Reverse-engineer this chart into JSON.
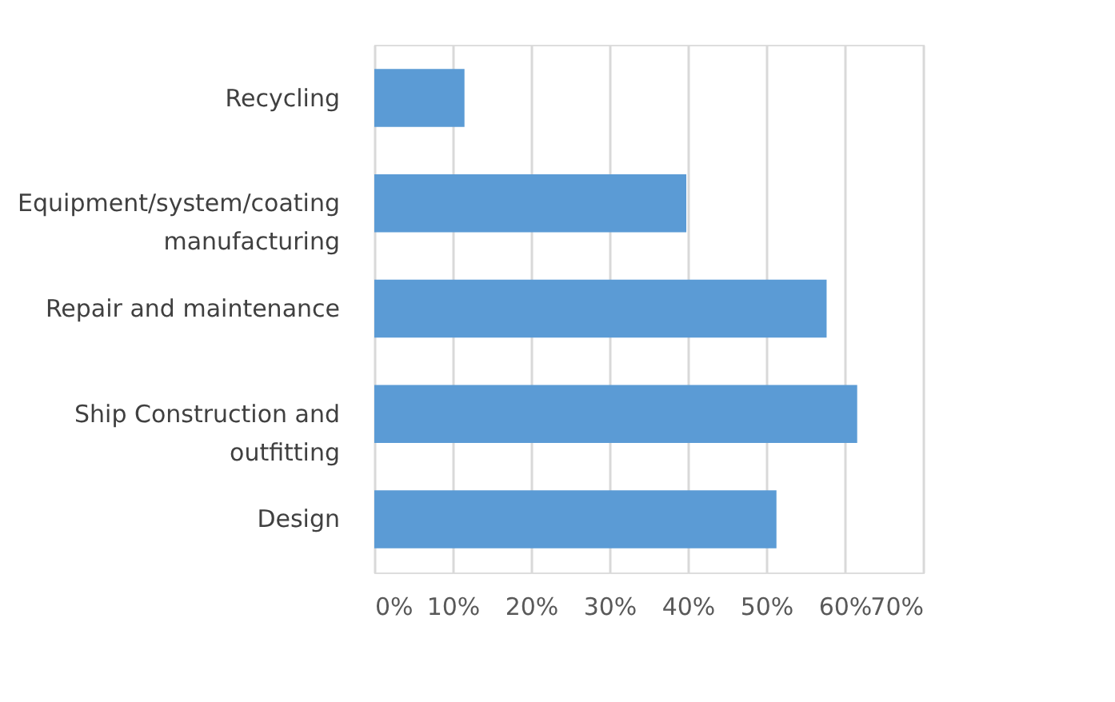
{
  "chart_data": {
    "type": "bar",
    "orientation": "horizontal",
    "categories": [
      "Recycling",
      "Equipment/system/coating manufacturing",
      "Repair and maintenance",
      "Ship Construction and outfitting",
      "Design"
    ],
    "values": [
      11.5,
      39.8,
      57.7,
      61.6,
      51.3
    ],
    "color": "#5b9bd5",
    "xlim": [
      0,
      70
    ],
    "xticks": [
      {
        "value": 0,
        "label": "0%"
      },
      {
        "value": 10,
        "label": "10%"
      },
      {
        "value": 20,
        "label": "20%"
      },
      {
        "value": 30,
        "label": "30%"
      },
      {
        "value": 40,
        "label": "40%"
      },
      {
        "value": 50,
        "label": "50%"
      },
      {
        "value": 60,
        "label": "60%"
      },
      {
        "value": 70,
        "label": "70%"
      }
    ],
    "grid": "x"
  }
}
